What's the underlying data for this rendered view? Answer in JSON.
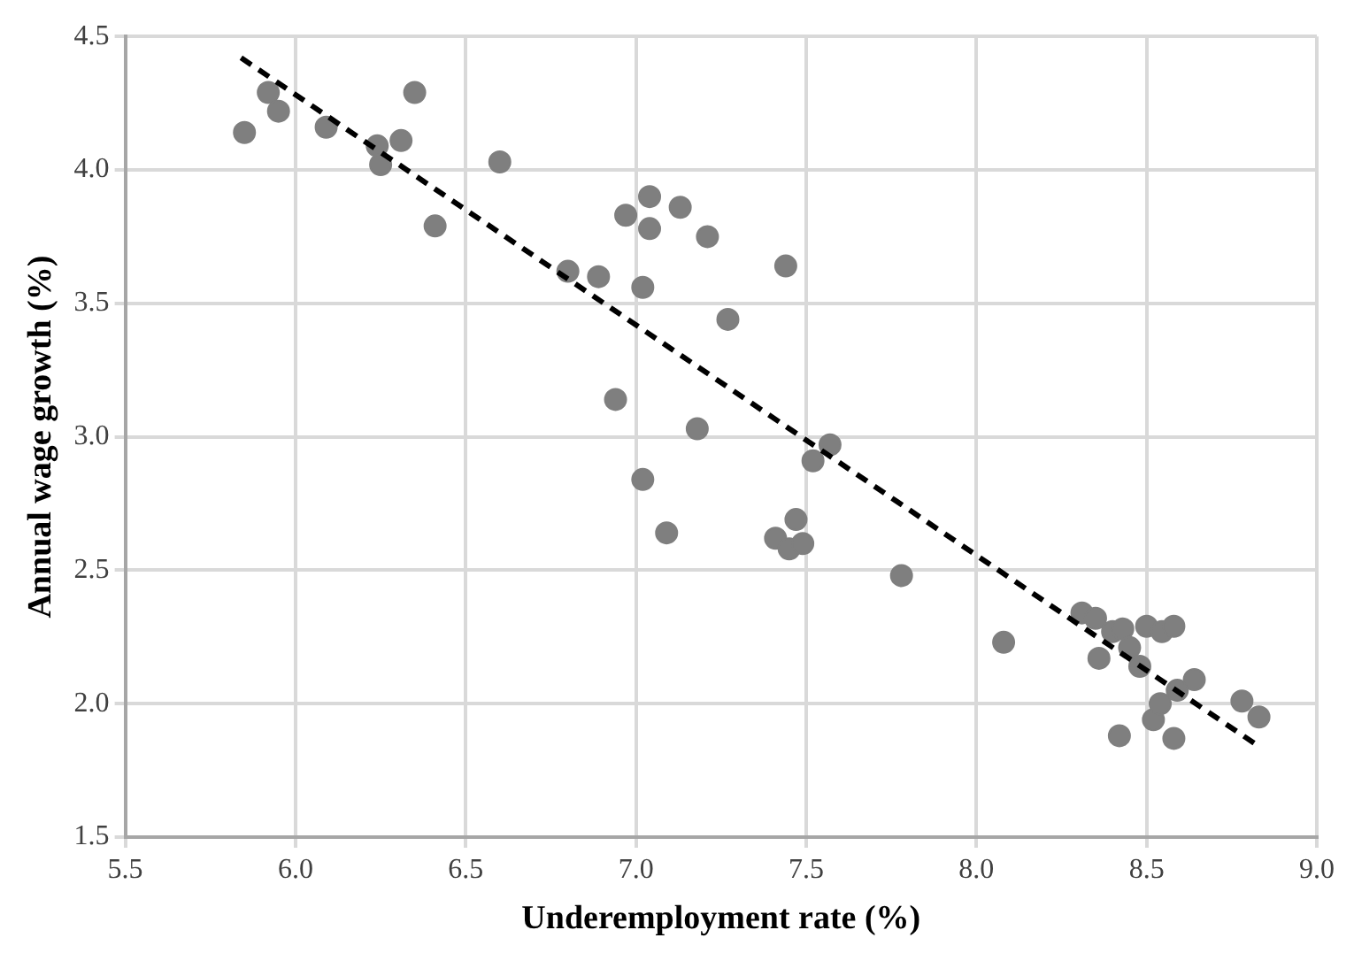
{
  "chart_data": {
    "type": "scatter",
    "xlabel": "Underemployment rate (%)",
    "ylabel": "Annual wage growth (%)",
    "xlim": [
      5.5,
      9.0
    ],
    "xticks": [
      {
        "value": 5.5,
        "label": "5.5"
      },
      {
        "value": 6,
        "label": "6.0"
      },
      {
        "value": 6.5,
        "label": "6.5"
      },
      {
        "value": 7,
        "label": "7.0"
      },
      {
        "value": 7.5,
        "label": "7.5"
      },
      {
        "value": 8,
        "label": "8.0"
      },
      {
        "value": 8.5,
        "label": "8.5"
      },
      {
        "value": 9,
        "label": "9.0"
      }
    ],
    "ylim": [
      1.5,
      4.5
    ],
    "yticks": [
      {
        "value": 1.5,
        "label": "1.5"
      },
      {
        "value": 2,
        "label": "2.0"
      },
      {
        "value": 2.5,
        "label": "2.5"
      },
      {
        "value": 3,
        "label": "3.0"
      },
      {
        "value": 3.5,
        "label": "3.5"
      },
      {
        "value": 4,
        "label": "4.0"
      },
      {
        "value": 4.5,
        "label": "4.5"
      }
    ],
    "grid": true,
    "legend": false,
    "marker": "circle",
    "series": [
      {
        "color": "#7f7f7f",
        "x": [
          5.85,
          5.92,
          5.95,
          6.09,
          6.24,
          6.25,
          6.31,
          6.35,
          6.41,
          6.6,
          6.8,
          6.89,
          6.97,
          7.04,
          7.04,
          7.13,
          7.21,
          7.02,
          7.27,
          7.44,
          6.94,
          7.18,
          7.02,
          7.09,
          7.41,
          7.45,
          7.49,
          7.47,
          7.52,
          7.57,
          7.78,
          8.08,
          8.31,
          8.35,
          8.36,
          8.4,
          8.43,
          8.42,
          8.45,
          8.48,
          8.5,
          8.545,
          8.52,
          8.54,
          8.58,
          8.58,
          8.59,
          8.64,
          8.78,
          8.83
        ],
        "values": [
          4.14,
          4.29,
          4.22,
          4.16,
          4.09,
          4.02,
          4.11,
          4.29,
          3.79,
          4.03,
          3.62,
          3.6,
          3.83,
          3.9,
          3.78,
          3.86,
          3.75,
          3.56,
          3.44,
          3.64,
          3.14,
          3.03,
          2.84,
          2.64,
          2.62,
          2.58,
          2.6,
          2.69,
          2.91,
          2.97,
          2.48,
          2.23,
          2.34,
          2.32,
          2.17,
          2.27,
          2.28,
          1.88,
          2.21,
          2.14,
          2.29,
          2.27,
          1.94,
          2.0,
          2.29,
          1.87,
          2.05,
          2.09,
          2.01,
          1.95
        ]
      },
      {
        "type": "line",
        "color": "#000000",
        "line_style": "dashed",
        "marker": "none",
        "x": [
          5.84,
          8.83
        ],
        "values": [
          4.42,
          1.84
        ]
      }
    ]
  }
}
